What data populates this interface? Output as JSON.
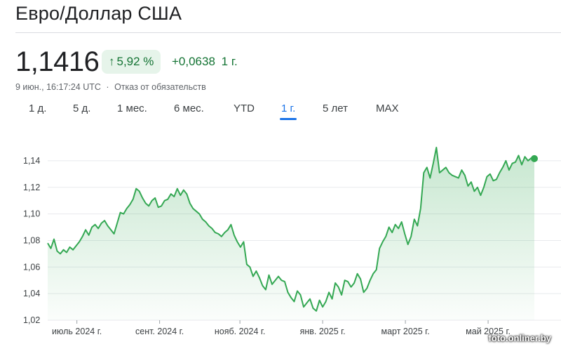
{
  "header": {
    "title": "Евро/Доллар США"
  },
  "quote": {
    "price": "1,1416",
    "change_percent": "5,92 %",
    "change_arrow": "↑",
    "change_abs": "+0,0638",
    "change_period": "1 г.",
    "timestamp": "9 июн., 16:17:24 UTC",
    "separator": "·",
    "disclaimer": "Отказ от обязательств",
    "accent_color": "#137333"
  },
  "tabs": [
    {
      "label": "1 д."
    },
    {
      "label": "5 д."
    },
    {
      "label": "1 мес."
    },
    {
      "label": "6 мес."
    },
    {
      "label": "YTD"
    },
    {
      "label": "1 г.",
      "active": true
    },
    {
      "label": "5 лет"
    },
    {
      "label": "MAX"
    }
  ],
  "watermark": "foto.onliner.by",
  "chart_data": {
    "type": "area",
    "line_color": "#34a853",
    "grid": true,
    "ylim": [
      1.02,
      1.15
    ],
    "y_ticks": [
      "1,14",
      "1,12",
      "1,10",
      "1,08",
      "1,06",
      "1,04",
      "1,02"
    ],
    "y_tick_values": [
      1.14,
      1.12,
      1.1,
      1.08,
      1.06,
      1.04,
      1.02
    ],
    "x_tick_labels": [
      "июль 2024 г.",
      "сент. 2024 г.",
      "нояб. 2024 г.",
      "янв. 2025 г.",
      "март 2025 г.",
      "май 2025 г."
    ],
    "x_tick_positions": [
      0.06,
      0.23,
      0.395,
      0.565,
      0.735,
      0.905
    ],
    "series": [
      {
        "values": [
          1.078,
          1.074,
          1.081,
          1.072,
          1.07,
          1.073,
          1.071,
          1.075,
          1.073,
          1.076,
          1.079,
          1.083,
          1.088,
          1.084,
          1.09,
          1.092,
          1.089,
          1.093,
          1.095,
          1.091,
          1.088,
          1.085,
          1.093,
          1.101,
          1.1,
          1.104,
          1.107,
          1.111,
          1.119,
          1.117,
          1.112,
          1.108,
          1.106,
          1.11,
          1.112,
          1.105,
          1.106,
          1.11,
          1.111,
          1.115,
          1.113,
          1.119,
          1.114,
          1.118,
          1.115,
          1.108,
          1.104,
          1.102,
          1.1,
          1.096,
          1.094,
          1.091,
          1.089,
          1.086,
          1.085,
          1.083,
          1.086,
          1.088,
          1.092,
          1.084,
          1.079,
          1.075,
          1.079,
          1.062,
          1.06,
          1.053,
          1.057,
          1.052,
          1.046,
          1.043,
          1.054,
          1.047,
          1.05,
          1.053,
          1.05,
          1.049,
          1.041,
          1.037,
          1.034,
          1.042,
          1.039,
          1.03,
          1.033,
          1.036,
          1.029,
          1.027,
          1.035,
          1.03,
          1.034,
          1.041,
          1.036,
          1.048,
          1.045,
          1.039,
          1.05,
          1.049,
          1.045,
          1.048,
          1.055,
          1.051,
          1.041,
          1.044,
          1.05,
          1.055,
          1.058,
          1.074,
          1.079,
          1.083,
          1.09,
          1.086,
          1.092,
          1.089,
          1.094,
          1.085,
          1.077,
          1.083,
          1.096,
          1.091,
          1.104,
          1.131,
          1.135,
          1.127,
          1.138,
          1.15,
          1.131,
          1.133,
          1.135,
          1.131,
          1.129,
          1.128,
          1.127,
          1.133,
          1.129,
          1.121,
          1.124,
          1.117,
          1.12,
          1.114,
          1.12,
          1.128,
          1.13,
          1.125,
          1.126,
          1.131,
          1.135,
          1.14,
          1.133,
          1.138,
          1.139,
          1.144,
          1.137,
          1.143,
          1.14,
          1.142,
          1.1416
        ]
      }
    ]
  }
}
